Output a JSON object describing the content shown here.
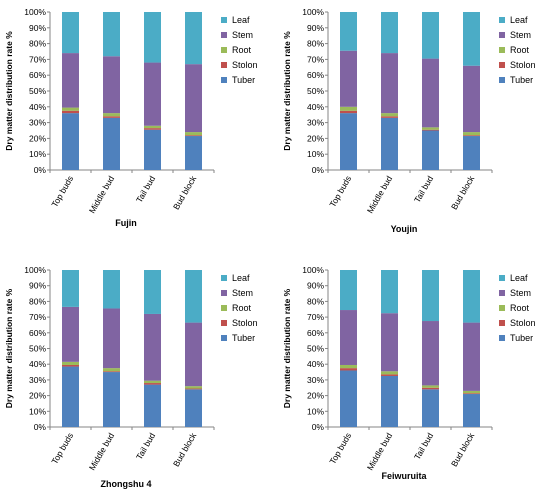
{
  "chart_data": [
    {
      "type": "bar",
      "stacked": true,
      "title": "Fujin",
      "ylabel": "Dry matter distribution rate %",
      "ylim": [
        0,
        100
      ],
      "yticks": [
        "0%",
        "10%",
        "20%",
        "30%",
        "40%",
        "50%",
        "60%",
        "70%",
        "80%",
        "90%",
        "100%"
      ],
      "categories": [
        "Top buds",
        "Middle bud",
        "Tail bud",
        "Bud block"
      ],
      "legend_position": "right",
      "series": [
        {
          "name": "Tuber",
          "color": "#4f81bd",
          "values": [
            36,
            33,
            25.5,
            21.5
          ]
        },
        {
          "name": "Stolon",
          "color": "#c0504d",
          "values": [
            1.5,
            1,
            1,
            0.5
          ]
        },
        {
          "name": "Root",
          "color": "#9bbb59",
          "values": [
            2,
            2,
            1.5,
            2
          ]
        },
        {
          "name": "Stem",
          "color": "#8064a2",
          "values": [
            34.5,
            36,
            40,
            43
          ]
        },
        {
          "name": "Leaf",
          "color": "#4bacc6",
          "values": [
            26,
            28,
            32,
            33
          ]
        }
      ]
    },
    {
      "type": "bar",
      "stacked": true,
      "title": "Youjin",
      "ylabel": "Dry matter distribution rate %",
      "ylim": [
        0,
        100
      ],
      "yticks": [
        "0%",
        "10%",
        "20%",
        "30%",
        "40%",
        "50%",
        "60%",
        "70%",
        "80%",
        "90%",
        "100%"
      ],
      "categories": [
        "Top buds",
        "Middle bud",
        "Tail bud",
        "Bud block"
      ],
      "legend_position": "right",
      "series": [
        {
          "name": "Tuber",
          "color": "#4f81bd",
          "values": [
            36,
            33,
            25,
            21.5
          ]
        },
        {
          "name": "Stolon",
          "color": "#c0504d",
          "values": [
            1.5,
            1,
            0.5,
            0.5
          ]
        },
        {
          "name": "Root",
          "color": "#9bbb59",
          "values": [
            2.5,
            2,
            1.5,
            2
          ]
        },
        {
          "name": "Stem",
          "color": "#8064a2",
          "values": [
            35.5,
            38,
            43.5,
            42
          ]
        },
        {
          "name": "Leaf",
          "color": "#4bacc6",
          "values": [
            24.5,
            26,
            29.5,
            34
          ]
        }
      ]
    },
    {
      "type": "bar",
      "stacked": true,
      "title": "Zhongshu 4",
      "ylabel": "Dry matter distribution rate %",
      "ylim": [
        0,
        100
      ],
      "yticks": [
        "0%",
        "10%",
        "20%",
        "30%",
        "40%",
        "50%",
        "60%",
        "70%",
        "80%",
        "90%",
        "100%"
      ],
      "categories": [
        "Top buds",
        "Middle bud",
        "Tail bud",
        "Bud block"
      ],
      "legend_position": "right",
      "series": [
        {
          "name": "Tuber",
          "color": "#4f81bd",
          "values": [
            38.5,
            35,
            27,
            24
          ]
        },
        {
          "name": "Stolon",
          "color": "#c0504d",
          "values": [
            1,
            0.5,
            1,
            0.5
          ]
        },
        {
          "name": "Root",
          "color": "#9bbb59",
          "values": [
            2,
            2,
            1.5,
            1.5
          ]
        },
        {
          "name": "Stem",
          "color": "#8064a2",
          "values": [
            35,
            38,
            42.5,
            40.5
          ]
        },
        {
          "name": "Leaf",
          "color": "#4bacc6",
          "values": [
            23.5,
            24.5,
            28,
            33.5
          ]
        }
      ]
    },
    {
      "type": "bar",
      "stacked": true,
      "title": "Feiwuruita",
      "ylabel": "Dry matter distribution rate %",
      "ylim": [
        0,
        100
      ],
      "yticks": [
        "0%",
        "10%",
        "20%",
        "30%",
        "40%",
        "50%",
        "60%",
        "70%",
        "80%",
        "90%",
        "100%"
      ],
      "categories": [
        "Top buds",
        "Middle bud",
        "Tail bud",
        "Bud block"
      ],
      "legend_position": "right",
      "series": [
        {
          "name": "Tuber",
          "color": "#4f81bd",
          "values": [
            36,
            32.5,
            24,
            21
          ]
        },
        {
          "name": "Stolon",
          "color": "#c0504d",
          "values": [
            1.5,
            1,
            1,
            0.5
          ]
        },
        {
          "name": "Root",
          "color": "#9bbb59",
          "values": [
            2,
            2,
            1.5,
            1.5
          ]
        },
        {
          "name": "Stem",
          "color": "#8064a2",
          "values": [
            35,
            37,
            41,
            43.5
          ]
        },
        {
          "name": "Leaf",
          "color": "#4bacc6",
          "values": [
            25.5,
            27.5,
            32.5,
            33.5
          ]
        }
      ]
    }
  ]
}
